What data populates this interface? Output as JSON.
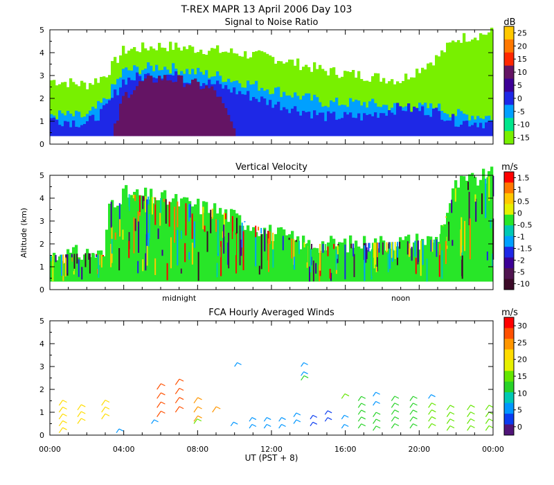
{
  "title": "T-REX  MAPR 13 April 2006 Day 103",
  "chart_data": [
    {
      "type": "heatmap",
      "title": "Signal to Noise Ratio",
      "ylabel": "",
      "ylim": [
        0,
        5
      ],
      "yticks": [
        "0",
        "1",
        "2",
        "3",
        "4",
        "5"
      ],
      "colorbar_unit": "dB",
      "colorbar_labels": [
        "25",
        "20",
        "15",
        "10",
        "5",
        "0",
        "-5",
        "-10",
        "-15"
      ],
      "colorbar_colors": [
        "#ffc800",
        "#ff7800",
        "#ff2800",
        "#641464",
        "#3c0096",
        "#1e28e6",
        "#00a0ff",
        "#00e68c",
        "#78f000"
      ],
      "colorbar_values": [
        25,
        20,
        15,
        10,
        5,
        0,
        -5,
        -10,
        -15
      ],
      "layers": [
        {
          "name": "weak echo",
          "color": "#78f000",
          "t": [
            0,
            2,
            3,
            4,
            6,
            9,
            12,
            15,
            17,
            19,
            21,
            22,
            24
          ],
          "top": [
            2.8,
            2.6,
            3.0,
            4.1,
            4.3,
            4.1,
            3.8,
            3.2,
            3.0,
            2.8,
            3.8,
            4.6,
            4.9
          ]
        },
        {
          "name": "moderate echo",
          "color": "#00a0ff",
          "t": [
            0,
            2,
            3,
            4,
            6,
            9,
            12,
            15,
            17,
            19,
            21,
            22,
            24
          ],
          "top": [
            1.3,
            1.2,
            1.9,
            3.2,
            3.4,
            3.0,
            2.4,
            1.8,
            1.8,
            1.6,
            1.6,
            1.3,
            1.2
          ]
        },
        {
          "name": "strong echo",
          "color": "#1e28e6",
          "t": [
            0,
            2,
            3,
            4,
            6,
            9,
            12,
            15,
            17,
            19,
            21,
            22,
            24
          ],
          "top": [
            1.1,
            0.9,
            1.5,
            2.8,
            3.1,
            2.6,
            1.8,
            1.2,
            1.2,
            1.6,
            1.4,
            1.0,
            0.9
          ]
        },
        {
          "name": "core",
          "color": "#641464",
          "t": [
            3.5,
            4,
            5,
            6,
            7,
            8,
            9,
            10
          ],
          "top": [
            0.6,
            2.1,
            2.7,
            2.9,
            2.8,
            2.6,
            2.3,
            0.6
          ]
        }
      ]
    },
    {
      "type": "heatmap",
      "title": "Vertical Velocity",
      "ylabel": "Altitude (km)",
      "ylim": [
        0,
        5
      ],
      "yticks": [
        "0",
        "1",
        "2",
        "3",
        "4",
        "5"
      ],
      "xmarkers": [
        "midnight",
        "noon"
      ],
      "xmarker_hours": [
        7,
        19
      ],
      "colorbar_unit": "m/s",
      "colorbar_labels": [
        "1.5",
        "1",
        "0.5",
        "0",
        "-0.5",
        "-1",
        "-1.5",
        "-2",
        "-5",
        "-10"
      ],
      "colorbar_colors": [
        "#ff0000",
        "#ff7800",
        "#ffc800",
        "#e6f000",
        "#28e628",
        "#00c8b4",
        "#00a0ff",
        "#1e28e6",
        "#3c0096",
        "#501450",
        "#3c0a28"
      ],
      "colorbar_values": [
        1.5,
        1,
        0.5,
        0,
        -0.5,
        -1,
        -1.5,
        -2,
        -5,
        -10
      ],
      "layers": [
        {
          "name": "echo",
          "color": "#28e628",
          "t": [
            0,
            2,
            3,
            3.2,
            4,
            6,
            9,
            12,
            14,
            16,
            19,
            21,
            22,
            24
          ],
          "top": [
            1.5,
            1.6,
            1.5,
            3.8,
            4.2,
            4.0,
            3.5,
            2.5,
            2.0,
            2.0,
            2.1,
            2.2,
            4.6,
            5.0
          ]
        }
      ]
    },
    {
      "type": "scatter",
      "title": "FCA Hourly Averaged Winds",
      "xlabel": "UT  (PST + 8)",
      "ylim": [
        0,
        5
      ],
      "yticks": [
        "0",
        "1",
        "2",
        "3",
        "4",
        "5"
      ],
      "xticks": [
        "00:00",
        "04:00",
        "08:00",
        "12:00",
        "16:00",
        "20:00",
        "00:00"
      ],
      "colorbar_unit": "m/s",
      "colorbar_labels": [
        "30",
        "25",
        "20",
        "15",
        "10",
        "5",
        "0"
      ],
      "colorbar_values": [
        30,
        25,
        20,
        15,
        10,
        5,
        0
      ],
      "colorbar_colors": [
        "#ff0000",
        "#ff5000",
        "#ff9600",
        "#ffdc00",
        "#e6f000",
        "#64e600",
        "#28d228",
        "#00c8b4",
        "#0096ff",
        "#0a3cf0",
        "#501478"
      ],
      "winds": [
        {
          "hour": 0.5,
          "alts": [
            0.1,
            0.4,
            0.7,
            1.0,
            1.3
          ],
          "speed": 20
        },
        {
          "hour": 1.5,
          "alts": [
            0.5,
            0.8,
            1.1
          ],
          "speed": 21
        },
        {
          "hour": 2.8,
          "alts": [
            0.7,
            1.0,
            1.3
          ],
          "speed": 21
        },
        {
          "hour": 3.6,
          "alts": [
            0.1
          ],
          "speed": 5
        },
        {
          "hour": 5.5,
          "alts": [
            0.5
          ],
          "speed": 5
        },
        {
          "hour": 5.8,
          "alts": [
            0.8,
            1.2,
            1.6,
            2.0
          ],
          "speed": 26
        },
        {
          "hour": 6.8,
          "alts": [
            1.0,
            1.4,
            1.8,
            2.2
          ],
          "speed": 26
        },
        {
          "hour": 7.8,
          "alts": [
            0.6,
            1.0,
            1.4
          ],
          "speed": 24
        },
        {
          "hour": 8.8,
          "alts": [
            1.0
          ],
          "speed": 24
        },
        {
          "hour": 7.8,
          "alts": [
            0.5
          ],
          "speed": 15
        },
        {
          "hour": 10.0,
          "alts": [
            3.0
          ],
          "speed": 5
        },
        {
          "hour": 9.8,
          "alts": [
            0.4
          ],
          "speed": 5
        },
        {
          "hour": 10.8,
          "alts": [
            0.3,
            0.6
          ],
          "speed": 5
        },
        {
          "hour": 11.6,
          "alts": [
            0.3,
            0.6
          ],
          "speed": 5
        },
        {
          "hour": 12.4,
          "alts": [
            0.3,
            0.6
          ],
          "speed": 5
        },
        {
          "hour": 13.2,
          "alts": [
            0.5,
            0.8
          ],
          "speed": 5
        },
        {
          "hour": 13.6,
          "alts": [
            2.6,
            3.0
          ],
          "speed": 5
        },
        {
          "hour": 13.6,
          "alts": [
            2.4
          ],
          "speed": 12
        },
        {
          "hour": 14.1,
          "alts": [
            0.4,
            0.7
          ],
          "speed": 4
        },
        {
          "hour": 14.9,
          "alts": [
            0.6,
            0.9
          ],
          "speed": 4
        },
        {
          "hour": 15.8,
          "alts": [
            0.3,
            0.7
          ],
          "speed": 5
        },
        {
          "hour": 15.8,
          "alts": [
            1.6
          ],
          "speed": 14
        },
        {
          "hour": 16.7,
          "alts": [
            0.3,
            0.6,
            0.9,
            1.2,
            1.5
          ],
          "speed": 11
        },
        {
          "hour": 17.5,
          "alts": [
            0.2,
            0.5,
            0.8
          ],
          "speed": 12
        },
        {
          "hour": 17.5,
          "alts": [
            1.3,
            1.7
          ],
          "speed": 6
        },
        {
          "hour": 18.5,
          "alts": [
            0.3,
            0.6,
            0.9,
            1.2,
            1.5
          ],
          "speed": 13
        },
        {
          "hour": 19.5,
          "alts": [
            0.3,
            0.6,
            0.9,
            1.2,
            1.5
          ],
          "speed": 12
        },
        {
          "hour": 20.5,
          "alts": [
            0.3,
            0.6,
            0.9,
            1.2
          ],
          "speed": 14
        },
        {
          "hour": 20.5,
          "alts": [
            1.6
          ],
          "speed": 5
        },
        {
          "hour": 21.5,
          "alts": [
            0.2,
            0.5,
            0.8,
            1.1
          ],
          "speed": 14
        },
        {
          "hour": 22.6,
          "alts": [
            0.2,
            0.5,
            0.8,
            1.1
          ],
          "speed": 16
        },
        {
          "hour": 23.6,
          "alts": [
            0.2,
            0.5,
            0.8,
            1.1
          ],
          "speed": 15
        }
      ]
    }
  ]
}
